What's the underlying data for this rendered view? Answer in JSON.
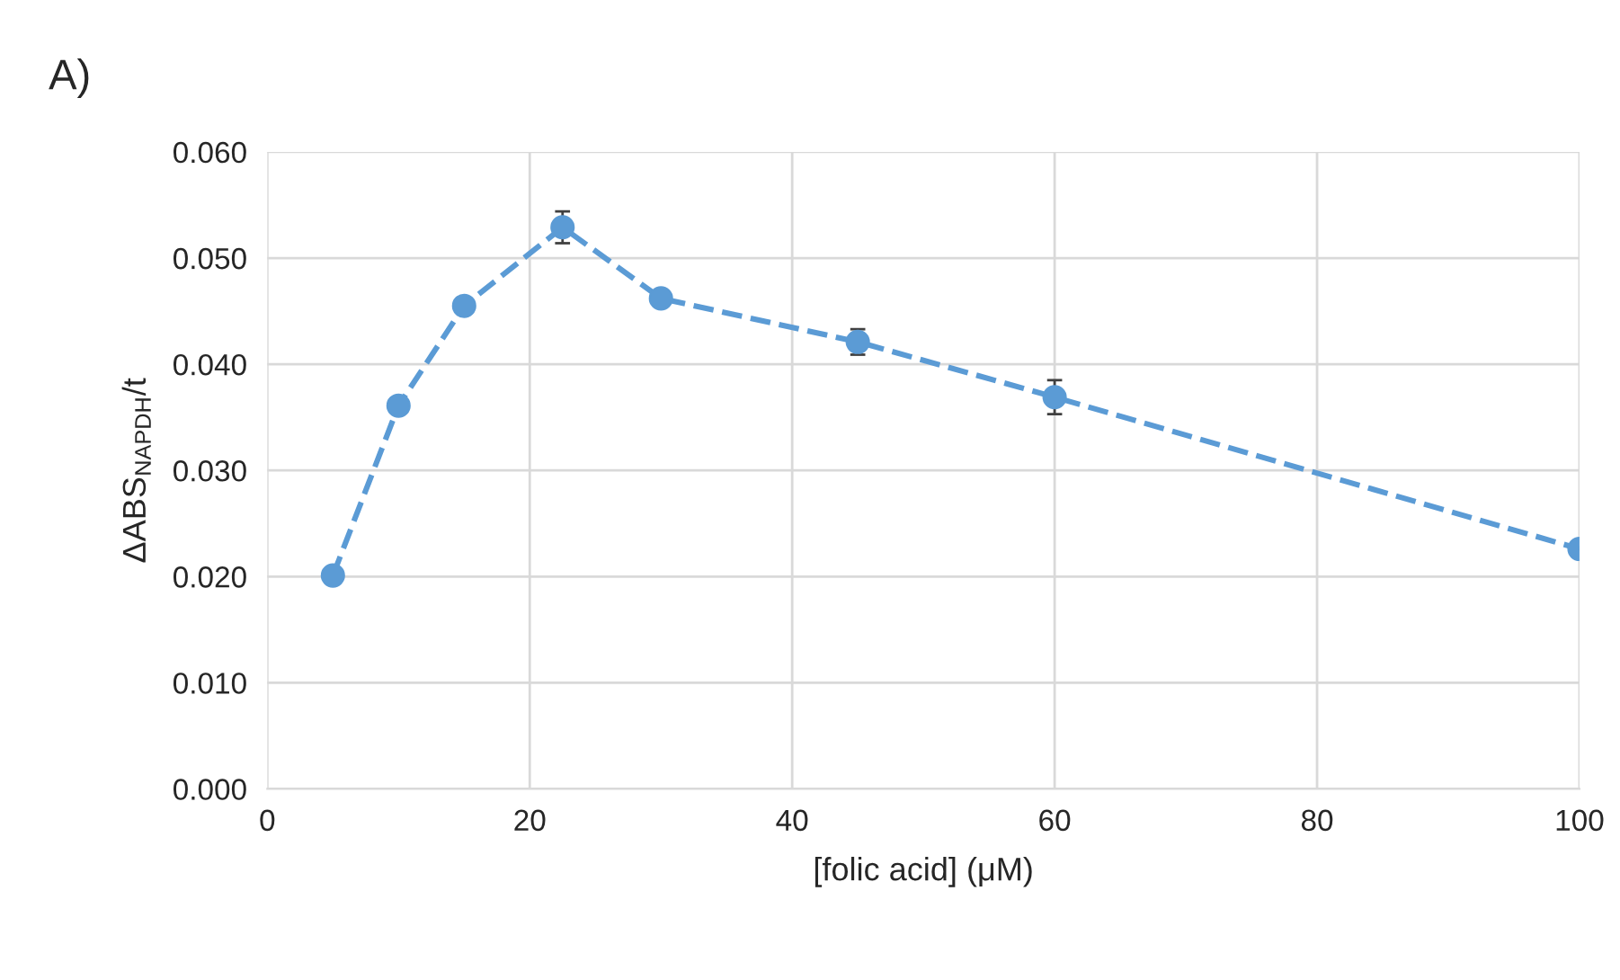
{
  "chart_data": {
    "type": "line",
    "ylabel": "ΔABS$_{NAPDH}$/t",
    "xlabel": "[folic acid] (μM)",
    "annotations": [
      "A)"
    ],
    "series": [
      {
        "color": "#5b9bd5",
        "x": [
          5,
          10,
          15,
          22.5,
          30,
          45,
          60,
          100
        ],
        "values": [
          0.0201,
          0.0361,
          0.0455,
          0.0529,
          0.0462,
          0.0421,
          0.0369,
          0.0226
        ],
        "errors": [
          null,
          null,
          null,
          0.0015,
          null,
          0.0012,
          0.0016,
          null
        ]
      }
    ],
    "xlim": [
      0,
      100
    ],
    "xticks": [
      0,
      20,
      40,
      60,
      80,
      100
    ],
    "ylim": [
      0,
      0.06
    ],
    "yticks": [
      {
        "value": 0,
        "label": "0.000"
      },
      {
        "value": 0.01,
        "label": "0.010"
      },
      {
        "value": 0.02,
        "label": "0.020"
      },
      {
        "value": 0.03,
        "label": "0.030"
      },
      {
        "value": 0.04,
        "label": "0.040"
      },
      {
        "value": 0.05,
        "label": "0.050"
      },
      {
        "value": 0.06,
        "label": "0.060"
      }
    ],
    "grid": true,
    "marker": "circle",
    "line_style": "dashed",
    "legend": false
  }
}
